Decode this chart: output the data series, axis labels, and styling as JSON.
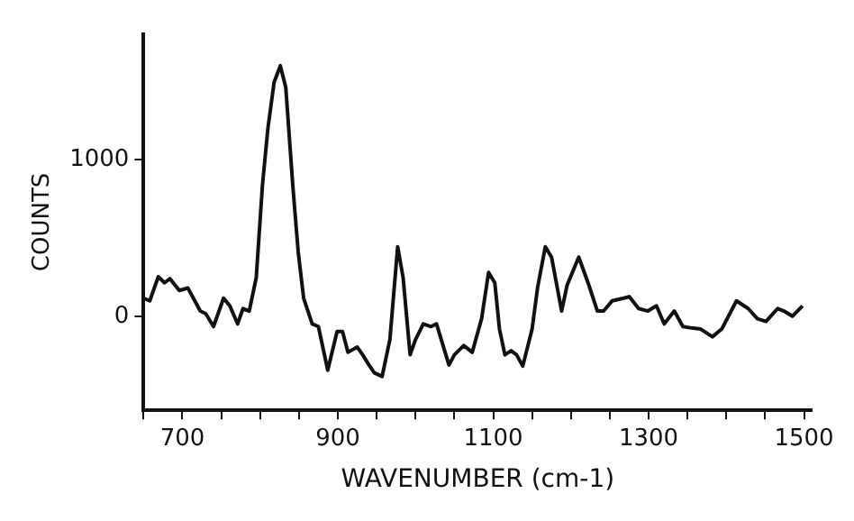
{
  "chart_data": {
    "type": "line",
    "xlabel": "WAVENUMBER (cm-1)",
    "ylabel": "COUNTS",
    "xlim": [
      650,
      1510
    ],
    "ylim": [
      -600,
      1800
    ],
    "xticks": [
      {
        "value": 650,
        "label": null
      },
      700,
      {
        "value": 750,
        "label": null
      },
      {
        "value": 800,
        "label": null
      },
      {
        "value": 850,
        "label": null
      },
      900,
      {
        "value": 950,
        "label": null
      },
      {
        "value": 1000,
        "label": null
      },
      {
        "value": 1050,
        "label": null
      },
      1100,
      {
        "value": 1150,
        "label": null
      },
      {
        "value": 1200,
        "label": null
      },
      {
        "value": 1250,
        "label": null
      },
      1300,
      {
        "value": 1350,
        "label": null
      },
      {
        "value": 1400,
        "label": null
      },
      {
        "value": 1450,
        "label": null
      },
      1500
    ],
    "yticks": [
      0,
      1000
    ],
    "grid": false,
    "legend": false,
    "marker": "none",
    "line_style": "solid",
    "series": [
      {
        "color": "#111111",
        "x": [
          650,
          658,
          669,
          677,
          684,
          696,
          707,
          723,
          730,
          740,
          753,
          761,
          771,
          778,
          786,
          795,
          803,
          810,
          818,
          826,
          833,
          842,
          849,
          856,
          867,
          875,
          887,
          899,
          906,
          913,
          925,
          932,
          940,
          947,
          957,
          967,
          977,
          984,
          993,
          1000,
          1010,
          1020,
          1027,
          1035,
          1043,
          1050,
          1062,
          1073,
          1085,
          1094,
          1102,
          1108,
          1115,
          1123,
          1130,
          1138,
          1150,
          1157,
          1167,
          1175,
          1188,
          1195,
          1210,
          1222,
          1234,
          1242,
          1253,
          1268,
          1275,
          1287,
          1299,
          1310,
          1320,
          1333,
          1344,
          1355,
          1367,
          1382,
          1394,
          1413,
          1428,
          1440,
          1451,
          1466,
          1474,
          1485,
          1498
        ],
        "values": [
          115,
          98,
          252,
          213,
          239,
          164,
          180,
          33,
          16,
          -66,
          115,
          66,
          -49,
          49,
          33,
          246,
          836,
          1197,
          1492,
          1597,
          1459,
          836,
          410,
          115,
          -49,
          -66,
          -344,
          -98,
          -98,
          -230,
          -197,
          -246,
          -311,
          -361,
          -384,
          -148,
          443,
          246,
          -246,
          -148,
          -49,
          -66,
          -49,
          -180,
          -311,
          -246,
          -187,
          -230,
          -16,
          279,
          213,
          -82,
          -246,
          -220,
          -246,
          -318,
          -82,
          180,
          443,
          377,
          33,
          197,
          377,
          213,
          33,
          33,
          98,
          115,
          125,
          49,
          33,
          66,
          -49,
          33,
          -66,
          -75,
          -82,
          -131,
          -82,
          98,
          49,
          -16,
          -33,
          49,
          33,
          0,
          66
        ]
      }
    ]
  }
}
